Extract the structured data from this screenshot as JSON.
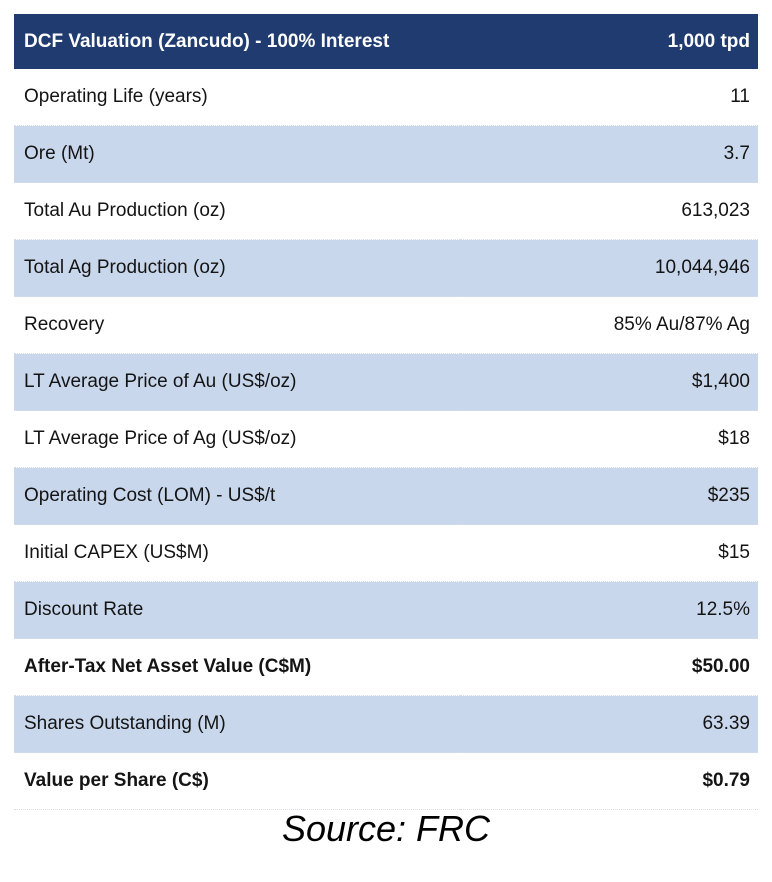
{
  "table": {
    "header": {
      "label": "DCF Valuation (Zancudo) - 100% Interest",
      "value": "1,000 tpd"
    },
    "rows": [
      {
        "label": "Operating Life (years)",
        "value": "11"
      },
      {
        "label": "Ore (Mt)",
        "value": "3.7"
      },
      {
        "label": "Total Au Production (oz)",
        "value": "613,023"
      },
      {
        "label": "Total Ag Production (oz)",
        "value": "10,044,946"
      },
      {
        "label": "Recovery",
        "value": "85% Au/87% Ag"
      },
      {
        "label": "LT Average Price of Au (US$/oz)",
        "value": "$1,400"
      },
      {
        "label": "LT Average Price of Ag (US$/oz)",
        "value": "$18"
      },
      {
        "label": "Operating Cost (LOM) - US$/t",
        "value": "$235"
      },
      {
        "label": "Initial CAPEX (US$M)",
        "value": "$15"
      },
      {
        "label": "Discount Rate",
        "value": "12.5%"
      },
      {
        "label": "After-Tax Net Asset Value (C$M)",
        "value": "$50.00"
      },
      {
        "label": "Shares Outstanding (M)",
        "value": "63.39"
      },
      {
        "label": "Value per Share (C$)",
        "value": "$0.79"
      }
    ]
  },
  "source": "Source: FRC",
  "colors": {
    "header_background": "#1f3b6f",
    "header_text": "#ffffff",
    "shaded_row": "#c9d7ec"
  }
}
